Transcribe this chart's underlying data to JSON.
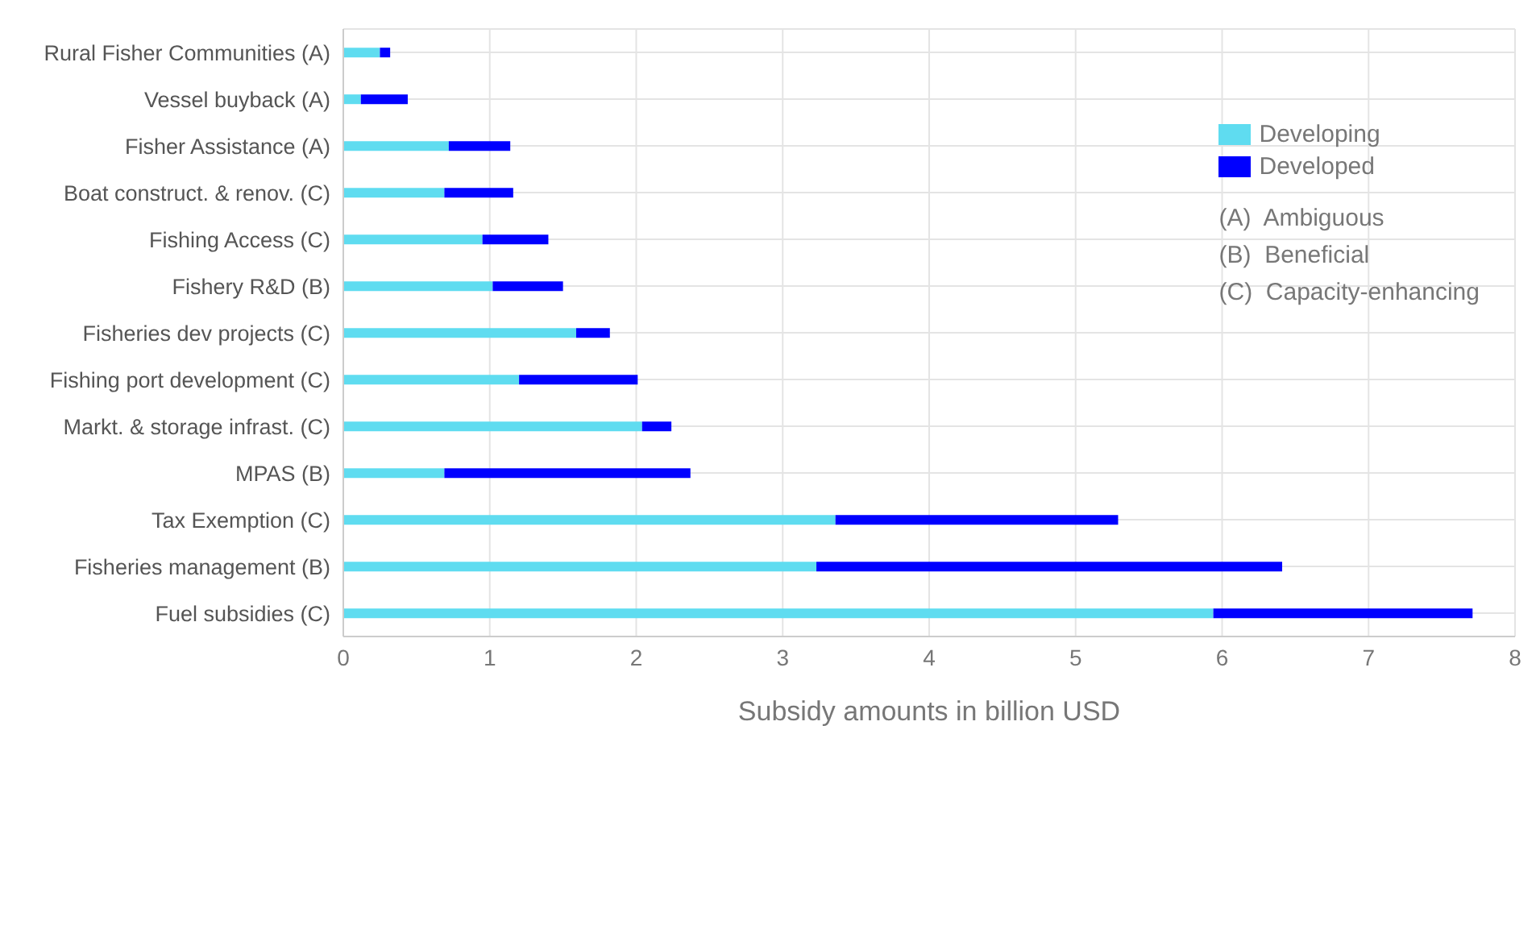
{
  "chart_data": {
    "type": "bar",
    "orientation": "horizontal",
    "stacked": true,
    "categories": [
      "Rural Fisher Communities (A)",
      "Vessel buyback (A)",
      "Fisher Assistance (A)",
      "Boat construct. & renov. (C)",
      "Fishing Access (C)",
      "Fishery R&D (B)",
      "Fisheries dev projects (C)",
      "Fishing port development (C)",
      "Markt. & storage infrast. (C)",
      "MPAS (B)",
      "Tax Exemption (C)",
      "Fisheries management (B)",
      "Fuel subsidies (C)"
    ],
    "series": [
      {
        "name": "Developing",
        "color": "#5fdcf0",
        "values": [
          0.25,
          0.12,
          0.72,
          0.69,
          0.95,
          1.02,
          1.59,
          1.2,
          2.04,
          0.69,
          3.36,
          3.23,
          5.94
        ]
      },
      {
        "name": "Developed",
        "color": "#0000ff",
        "values": [
          0.07,
          0.32,
          0.42,
          0.47,
          0.45,
          0.48,
          0.23,
          0.81,
          0.2,
          1.68,
          1.93,
          3.18,
          1.77
        ]
      }
    ],
    "xlim": [
      0,
      8
    ],
    "xticks": [
      0,
      1,
      2,
      3,
      4,
      5,
      6,
      7,
      8
    ],
    "xlabel": "Subsidy amounts in billion USD",
    "grid": true,
    "legend": "top right",
    "annotations": [
      "(A)  Ambiguous",
      "(B)  Beneficial",
      "(C)  Capacity-enhancing"
    ]
  }
}
